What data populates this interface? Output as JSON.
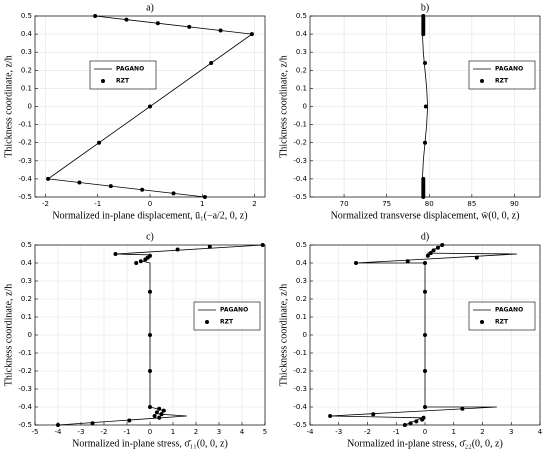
{
  "chart_data": [
    {
      "type": "line",
      "title": "a)",
      "x_label": "Normalized in-plane displacement, ū₁(−a/2, 0, z)",
      "y_label": "Thickness coordinate, z/h",
      "xlim": [
        -2.2,
        2.2
      ],
      "xticks": [
        -2,
        -1,
        0,
        1,
        2
      ],
      "ylim": [
        -0.5,
        0.5
      ],
      "yticks": [
        -0.5,
        -0.4,
        -0.3,
        -0.2,
        -0.1,
        0,
        0.1,
        0.2,
        0.3,
        0.4,
        0.5
      ],
      "grid": true,
      "legend": "upper left",
      "series": [
        {
          "name": "PAGANO",
          "style": "line",
          "color": "#000000",
          "x": [
            1.05,
            -1.95,
            1.95,
            -1.05
          ],
          "values": [
            -0.5,
            -0.4,
            0.4,
            0.5
          ]
        },
        {
          "name": "RZT",
          "style": "markers",
          "color": "#000000",
          "x": [
            1.05,
            0.45,
            -0.15,
            -0.75,
            -1.35,
            -1.95,
            -0.975,
            0,
            1.17,
            1.95,
            1.35,
            0.75,
            0.15,
            -0.45,
            -1.05
          ],
          "values": [
            -0.5,
            -0.48,
            -0.46,
            -0.44,
            -0.42,
            -0.4,
            -0.2,
            0,
            0.24,
            0.4,
            0.42,
            0.44,
            0.46,
            0.48,
            0.5
          ]
        }
      ]
    },
    {
      "type": "line",
      "title": "b)",
      "x_label": "Normalized transverse displacement, w̄(0, 0, z)",
      "y_label": "Thickness coordinate, z/h",
      "xlim": [
        66,
        93
      ],
      "xticks": [
        70,
        75,
        80,
        85,
        90
      ],
      "ylim": [
        -0.5,
        0.5
      ],
      "yticks": [
        -0.5,
        -0.4,
        -0.3,
        -0.2,
        -0.1,
        0,
        0.1,
        0.2,
        0.3,
        0.4,
        0.5
      ],
      "grid": true,
      "legend": "upper right",
      "series": [
        {
          "name": "PAGANO",
          "style": "line",
          "color": "#000000",
          "x": [
            79.4,
            79.3,
            79.2,
            79.3,
            79.5,
            79.7,
            79.8,
            79.7,
            79.5,
            79.3,
            79.2,
            79.3,
            79.4
          ],
          "values": [
            -0.5,
            -0.45,
            -0.4,
            -0.3,
            -0.2,
            -0.1,
            0,
            0.1,
            0.2,
            0.3,
            0.4,
            0.45,
            0.5
          ]
        },
        {
          "name": "RZT",
          "style": "markers",
          "color": "#000000",
          "x": [
            79.3,
            79.3,
            79.3,
            79.3,
            79.3,
            79.3,
            79.3,
            79.3,
            79.3,
            79.3,
            79.3,
            79.5,
            79.6,
            79.5,
            79.3,
            79.3,
            79.3,
            79.3,
            79.3,
            79.3,
            79.3,
            79.3,
            79.3,
            79.3,
            79.3
          ],
          "values": [
            -0.5,
            -0.49,
            -0.48,
            -0.47,
            -0.46,
            -0.45,
            -0.44,
            -0.43,
            -0.42,
            -0.41,
            -0.4,
            -0.2,
            0,
            0.24,
            0.4,
            0.41,
            0.42,
            0.43,
            0.44,
            0.45,
            0.46,
            0.47,
            0.48,
            0.49,
            0.5
          ]
        }
      ]
    },
    {
      "type": "line",
      "title": "c)",
      "x_label": "Normalized in-plane stress, σ̄₁₁(0, 0, z)",
      "y_label": "Thickness coordinate, z/h",
      "xlim": [
        -5,
        5
      ],
      "xticks": [
        -5,
        -4,
        -3,
        -2,
        -1,
        0,
        1,
        2,
        3,
        4,
        5
      ],
      "ylim": [
        -0.5,
        0.5
      ],
      "yticks": [
        -0.5,
        -0.4,
        -0.3,
        -0.2,
        -0.1,
        0,
        0.1,
        0.2,
        0.3,
        0.4,
        0.5
      ],
      "grid": true,
      "legend": "center right",
      "series": [
        {
          "name": "PAGANO",
          "style": "line",
          "color": "#000000",
          "x": [
            -4.0,
            1.6,
            0.4,
            0.6,
            0,
            0,
            -0.3,
            0,
            0,
            -1.5,
            4.9
          ],
          "values": [
            -0.5,
            -0.45,
            -0.44,
            -0.42,
            -0.4,
            0.4,
            0.41,
            0.43,
            0.445,
            0.45,
            0.5
          ]
        },
        {
          "name": "RZT",
          "style": "markers",
          "color": "#000000",
          "x": [
            -4.0,
            -2.5,
            -0.9,
            0.4,
            0.2,
            0.5,
            0.3,
            0.6,
            0.4,
            0,
            0,
            0,
            0,
            -0.6,
            -0.4,
            -0.2,
            -0.1,
            0,
            -1.5,
            1.2,
            2.6,
            4.9
          ],
          "values": [
            -0.5,
            -0.49,
            -0.475,
            -0.46,
            -0.45,
            -0.44,
            -0.43,
            -0.42,
            -0.41,
            -0.4,
            -0.2,
            0,
            0.24,
            0.4,
            0.41,
            0.42,
            0.43,
            0.44,
            0.45,
            0.475,
            0.49,
            0.5
          ]
        }
      ]
    },
    {
      "type": "line",
      "title": "d)",
      "x_label": "Normalized in-plane stress, σ̄₂₂(0, 0, z)",
      "y_label": "Thickness coordinate, z/h",
      "xlim": [
        -4,
        4
      ],
      "xticks": [
        -4,
        -3,
        -2,
        -1,
        0,
        1,
        2,
        3,
        4
      ],
      "ylim": [
        -0.5,
        0.5
      ],
      "yticks": [
        -0.5,
        -0.4,
        -0.3,
        -0.2,
        -0.1,
        0,
        0.1,
        0.2,
        0.3,
        0.4,
        0.5
      ],
      "grid": true,
      "legend": "center right",
      "series": [
        {
          "name": "PAGANO",
          "style": "line",
          "color": "#000000",
          "x": [
            -0.7,
            -0.1,
            -3.3,
            2.5,
            0,
            0,
            -2.4,
            3.2,
            0.1,
            0.6
          ],
          "values": [
            -0.5,
            -0.46,
            -0.45,
            -0.4,
            -0.4,
            0.4,
            0.4,
            0.45,
            0.455,
            0.5
          ]
        },
        {
          "name": "RZT",
          "style": "markers",
          "color": "#000000",
          "x": [
            -0.7,
            -0.5,
            -0.3,
            -0.1,
            -0.05,
            -3.3,
            -1.8,
            1.3,
            0,
            0,
            0,
            0,
            0,
            -2.4,
            -0.6,
            1.8,
            0.1,
            0.2,
            0.3,
            0.45,
            0.6
          ],
          "values": [
            -0.5,
            -0.49,
            -0.48,
            -0.47,
            -0.46,
            -0.45,
            -0.44,
            -0.41,
            -0.4,
            -0.2,
            0,
            0.24,
            0.4,
            0.4,
            0.41,
            0.43,
            0.44,
            0.455,
            0.47,
            0.485,
            0.5
          ]
        }
      ]
    }
  ]
}
